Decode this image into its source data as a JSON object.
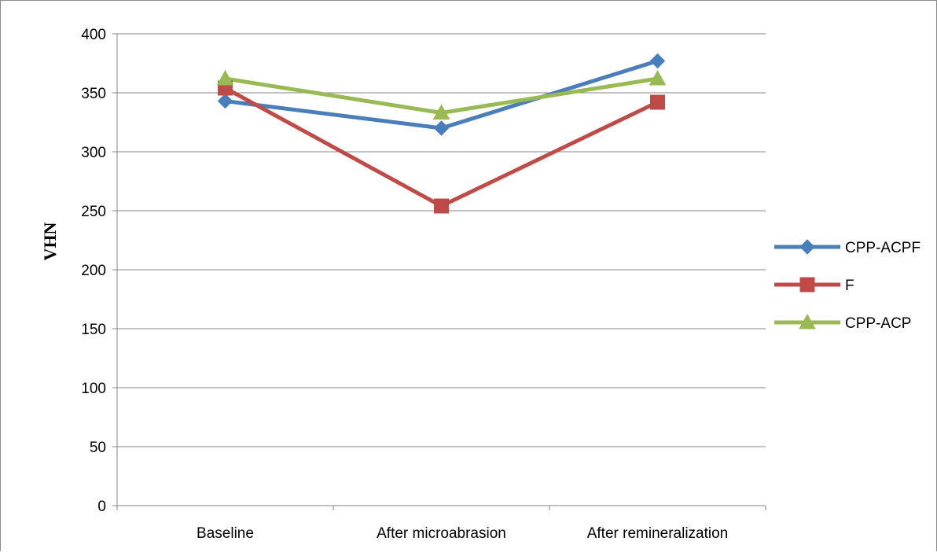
{
  "chart_data": {
    "type": "line",
    "title": "",
    "xlabel": "",
    "ylabel": "VHN",
    "categories": [
      "Baseline",
      "After microabrasion",
      "After remineralization"
    ],
    "ylim": [
      0,
      400
    ],
    "yticks": [
      0,
      50,
      100,
      150,
      200,
      250,
      300,
      350,
      400
    ],
    "grid": "horizontal",
    "legend": "right",
    "series": [
      {
        "name": "CPP-ACPF",
        "values": [
          343,
          320,
          377
        ],
        "color": "#4a7ebb",
        "marker": "diamond"
      },
      {
        "name": "F",
        "values": [
          354,
          254,
          342
        ],
        "color": "#be4b48",
        "marker": "square"
      },
      {
        "name": "CPP-ACP",
        "values": [
          362,
          333,
          362
        ],
        "color": "#98b954",
        "marker": "triangle"
      }
    ]
  }
}
